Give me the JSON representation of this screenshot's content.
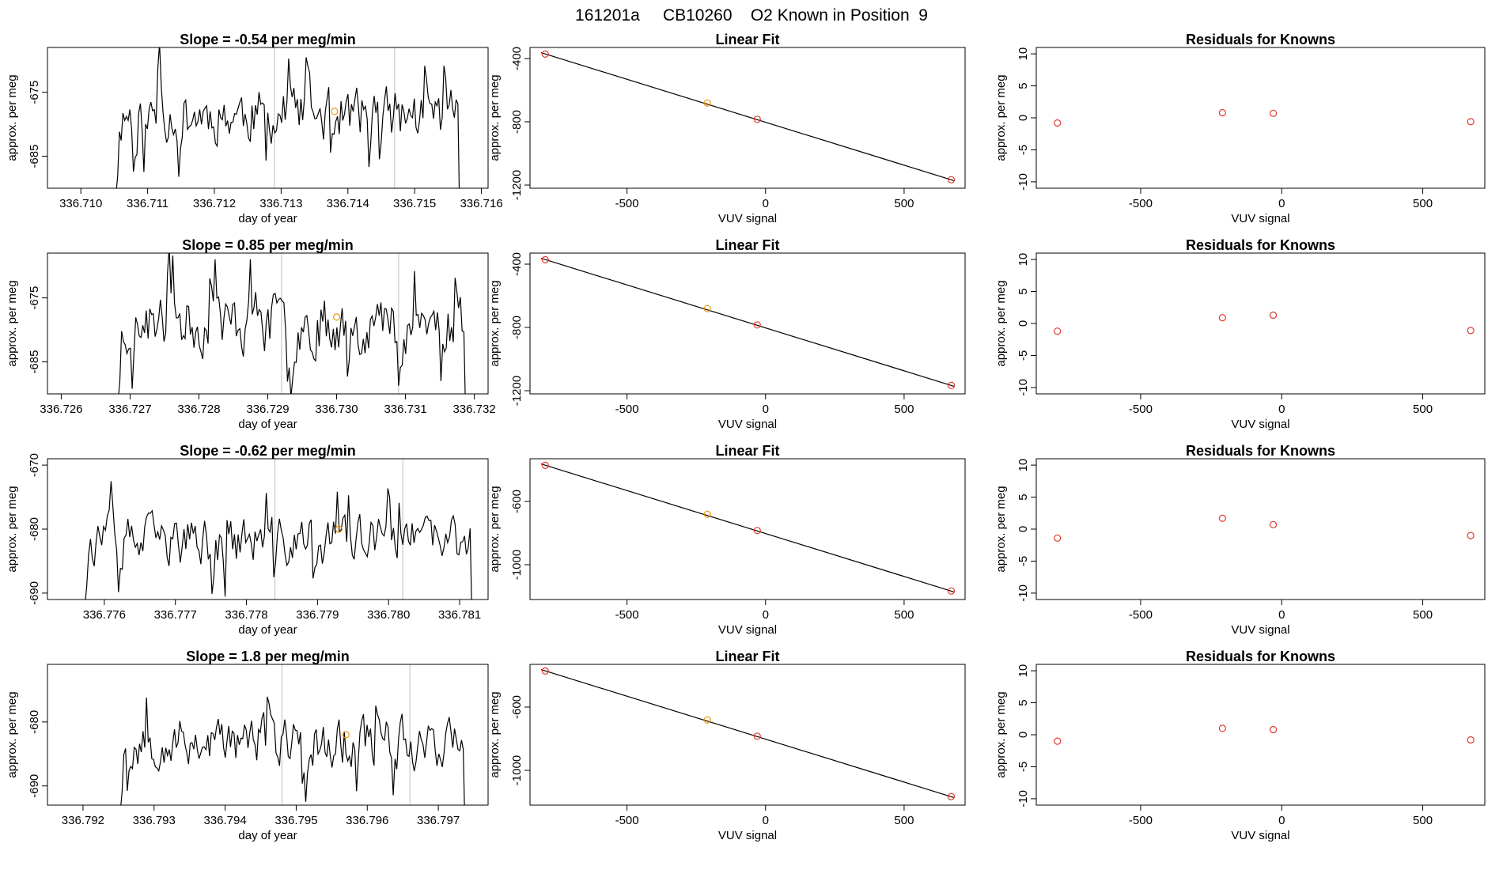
{
  "page_title": "161201a     CB10260    O2 Known in Position  9",
  "colors": {
    "line": "#000000",
    "point_known": "#e0392b",
    "point_highlight": "#e8960c",
    "vline": "#c8c8c8",
    "axis": "#000000"
  },
  "chart_data": [
    {
      "row": 0,
      "kind": "timeseries",
      "type": "line",
      "title": "Slope =  -0.54  per meg/min",
      "xlabel": "day of year",
      "ylabel": "approx. per meg",
      "xlim": [
        336.7095,
        336.7161
      ],
      "ylim": [
        -690,
        -668
      ],
      "xticks": [
        336.71,
        336.711,
        336.712,
        336.713,
        336.714,
        336.715,
        336.716
      ],
      "xtick_labels": [
        "336.710",
        "336.711",
        "336.712",
        "336.713",
        "336.714",
        "336.715",
        "336.716"
      ],
      "yticks": [
        -685,
        -675
      ],
      "ytick_labels": [
        "-685",
        "-675"
      ],
      "x_start": 336.7105,
      "x_end": 336.7157,
      "n_points": 200,
      "center": -678.5,
      "amplitude": 6.5,
      "seed": 11,
      "vlines": [
        336.7129,
        336.7147
      ],
      "highlight": {
        "x": 336.7138,
        "y": -678
      }
    },
    {
      "row": 0,
      "kind": "fit",
      "type": "scatter",
      "title": "Linear Fit",
      "xlabel": "VUV signal",
      "ylabel": "approx. per meg",
      "xlim": [
        -850,
        720
      ],
      "ylim": [
        -1220,
        -330
      ],
      "xticks": [
        -500,
        0,
        500
      ],
      "xtick_labels": [
        "-500",
        "0",
        "500"
      ],
      "yticks": [
        -1200,
        -800,
        -400
      ],
      "ytick_labels": [
        "-1200",
        "-800",
        "-400"
      ],
      "points": [
        {
          "x": -795,
          "y": -372
        },
        {
          "x": -210,
          "y": -681,
          "highlight": true
        },
        {
          "x": -30,
          "y": -784
        },
        {
          "x": 670,
          "y": -1166
        }
      ],
      "line": {
        "x": [
          -810,
          680
        ],
        "y": [
          -363,
          -1172
        ]
      }
    },
    {
      "row": 0,
      "kind": "resid",
      "type": "scatter",
      "title": "Residuals for Knowns",
      "xlabel": "VUV signal",
      "ylabel": "approx. per meg",
      "xlim": [
        -870,
        720
      ],
      "ylim": [
        -11,
        11
      ],
      "xticks": [
        -500,
        0,
        500
      ],
      "xtick_labels": [
        "-500",
        "0",
        "500"
      ],
      "yticks": [
        -10,
        -5,
        0,
        5,
        10
      ],
      "ytick_labels": [
        "-10",
        "-5",
        "0",
        "5",
        "10"
      ],
      "points": [
        {
          "x": -795,
          "y": -0.8
        },
        {
          "x": -210,
          "y": 0.8
        },
        {
          "x": -30,
          "y": 0.7
        },
        {
          "x": 670,
          "y": -0.6
        }
      ]
    },
    {
      "row": 1,
      "kind": "timeseries",
      "type": "line",
      "title": "Slope =  0.85  per meg/min",
      "xlabel": "day of year",
      "ylabel": "approx. per meg",
      "xlim": [
        336.7258,
        336.7322
      ],
      "ylim": [
        -690,
        -668
      ],
      "xticks": [
        336.726,
        336.727,
        336.728,
        336.729,
        336.73,
        336.731,
        336.732
      ],
      "xtick_labels": [
        "336.726",
        "336.727",
        "336.728",
        "336.729",
        "336.730",
        "336.731",
        "336.732"
      ],
      "yticks": [
        -685,
        -675
      ],
      "ytick_labels": [
        "-685",
        "-675"
      ],
      "x_start": 336.7268,
      "x_end": 336.7319,
      "n_points": 200,
      "center": -679,
      "amplitude": 7,
      "seed": 23,
      "vlines": [
        336.7292,
        336.7309
      ],
      "highlight": {
        "x": 336.73,
        "y": -678
      }
    },
    {
      "row": 1,
      "kind": "fit",
      "type": "scatter",
      "title": "Linear Fit",
      "xlabel": "VUV signal",
      "ylabel": "approx. per meg",
      "xlim": [
        -850,
        720
      ],
      "ylim": [
        -1220,
        -330
      ],
      "xticks": [
        -500,
        0,
        500
      ],
      "xtick_labels": [
        "-500",
        "0",
        "500"
      ],
      "yticks": [
        -1200,
        -800,
        -400
      ],
      "ytick_labels": [
        "-1200",
        "-800",
        "-400"
      ],
      "points": [
        {
          "x": -795,
          "y": -372
        },
        {
          "x": -210,
          "y": -681,
          "highlight": true
        },
        {
          "x": -30,
          "y": -784
        },
        {
          "x": 670,
          "y": -1166
        }
      ],
      "line": {
        "x": [
          -810,
          680
        ],
        "y": [
          -363,
          -1172
        ]
      }
    },
    {
      "row": 1,
      "kind": "resid",
      "type": "scatter",
      "title": "Residuals for Knowns",
      "xlabel": "VUV signal",
      "ylabel": "approx. per meg",
      "xlim": [
        -870,
        720
      ],
      "ylim": [
        -11,
        11
      ],
      "xticks": [
        -500,
        0,
        500
      ],
      "xtick_labels": [
        "-500",
        "0",
        "500"
      ],
      "yticks": [
        -10,
        -5,
        0,
        5,
        10
      ],
      "ytick_labels": [
        "-10",
        "-5",
        "0",
        "5",
        "10"
      ],
      "points": [
        {
          "x": -795,
          "y": -1.2
        },
        {
          "x": -210,
          "y": 0.9
        },
        {
          "x": -30,
          "y": 1.3
        },
        {
          "x": 670,
          "y": -1.1
        }
      ]
    },
    {
      "row": 2,
      "kind": "timeseries",
      "type": "line",
      "title": "Slope =  -0.62  per meg/min",
      "xlabel": "day of year",
      "ylabel": "approx. per meg",
      "xlim": [
        336.7752,
        336.7814
      ],
      "ylim": [
        -691,
        -669
      ],
      "xticks": [
        336.776,
        336.777,
        336.778,
        336.779,
        336.78,
        336.781
      ],
      "xtick_labels": [
        "336.776",
        "336.777",
        "336.778",
        "336.779",
        "336.780",
        "336.781"
      ],
      "yticks": [
        -690,
        -680,
        -670
      ],
      "ytick_labels": [
        "-690",
        "-680",
        "-670"
      ],
      "x_start": 336.7757,
      "x_end": 336.7812,
      "n_points": 210,
      "center": -682,
      "amplitude": 6,
      "seed": 37,
      "vlines": [
        336.7784,
        336.7802
      ],
      "highlight": {
        "x": 336.7793,
        "y": -680
      }
    },
    {
      "row": 2,
      "kind": "fit",
      "type": "scatter",
      "title": "Linear Fit",
      "xlabel": "VUV signal",
      "ylabel": "approx. per meg",
      "xlim": [
        -850,
        720
      ],
      "ylim": [
        -1220,
        -330
      ],
      "xticks": [
        -500,
        0,
        500
      ],
      "xtick_labels": [
        "-500",
        "0",
        "500"
      ],
      "yticks": [
        -1000,
        -600
      ],
      "ytick_labels": [
        "-1000",
        "-600"
      ],
      "points": [
        {
          "x": -795,
          "y": -372
        },
        {
          "x": -210,
          "y": -681,
          "highlight": true
        },
        {
          "x": -30,
          "y": -784
        },
        {
          "x": 670,
          "y": -1166
        }
      ],
      "line": {
        "x": [
          -810,
          680
        ],
        "y": [
          -363,
          -1172
        ]
      }
    },
    {
      "row": 2,
      "kind": "resid",
      "type": "scatter",
      "title": "Residuals for Knowns",
      "xlabel": "VUV signal",
      "ylabel": "approx. per meg",
      "xlim": [
        -870,
        720
      ],
      "ylim": [
        -11,
        11
      ],
      "xticks": [
        -500,
        0,
        500
      ],
      "xtick_labels": [
        "-500",
        "0",
        "500"
      ],
      "yticks": [
        -10,
        -5,
        0,
        5,
        10
      ],
      "ytick_labels": [
        "-10",
        "-5",
        "0",
        "5",
        "10"
      ],
      "points": [
        {
          "x": -795,
          "y": -1.4
        },
        {
          "x": -210,
          "y": 1.7
        },
        {
          "x": -30,
          "y": 0.7
        },
        {
          "x": 670,
          "y": -1.0
        }
      ]
    },
    {
      "row": 3,
      "kind": "timeseries",
      "type": "line",
      "title": "Slope =  1.8  per meg/min",
      "xlabel": "day of year",
      "ylabel": "approx. per meg",
      "xlim": [
        336.7915,
        336.7977
      ],
      "ylim": [
        -693,
        -671
      ],
      "xticks": [
        336.792,
        336.793,
        336.794,
        336.795,
        336.796,
        336.797
      ],
      "xtick_labels": [
        "336.792",
        "336.793",
        "336.794",
        "336.795",
        "336.796",
        "336.797"
      ],
      "yticks": [
        -690,
        -680
      ],
      "ytick_labels": [
        "-690",
        "-680"
      ],
      "x_start": 336.7925,
      "x_end": 336.7974,
      "n_points": 200,
      "center": -683,
      "amplitude": 6,
      "seed": 53,
      "vlines": [
        336.7948,
        336.7966
      ],
      "highlight": {
        "x": 336.7957,
        "y": -682
      }
    },
    {
      "row": 3,
      "kind": "fit",
      "type": "scatter",
      "title": "Linear Fit",
      "xlabel": "VUV signal",
      "ylabel": "approx. per meg",
      "xlim": [
        -850,
        720
      ],
      "ylim": [
        -1220,
        -330
      ],
      "xticks": [
        -500,
        0,
        500
      ],
      "xtick_labels": [
        "-500",
        "0",
        "500"
      ],
      "yticks": [
        -1000,
        -600
      ],
      "ytick_labels": [
        "-1000",
        "-600"
      ],
      "points": [
        {
          "x": -795,
          "y": -372
        },
        {
          "x": -210,
          "y": -681,
          "highlight": true
        },
        {
          "x": -30,
          "y": -784
        },
        {
          "x": 670,
          "y": -1166
        }
      ],
      "line": {
        "x": [
          -810,
          680
        ],
        "y": [
          -363,
          -1172
        ]
      }
    },
    {
      "row": 3,
      "kind": "resid",
      "type": "scatter",
      "title": "Residuals for Knowns",
      "xlabel": "VUV signal",
      "ylabel": "approx. per meg",
      "xlim": [
        -870,
        720
      ],
      "ylim": [
        -11,
        11
      ],
      "xticks": [
        -500,
        0,
        500
      ],
      "xtick_labels": [
        "-500",
        "0",
        "500"
      ],
      "yticks": [
        -10,
        -5,
        0,
        5,
        10
      ],
      "ytick_labels": [
        "-10",
        "-5",
        "0",
        "5",
        "10"
      ],
      "points": [
        {
          "x": -795,
          "y": -1.0
        },
        {
          "x": -210,
          "y": 1.0
        },
        {
          "x": -30,
          "y": 0.8
        },
        {
          "x": 670,
          "y": -0.8
        }
      ]
    }
  ]
}
